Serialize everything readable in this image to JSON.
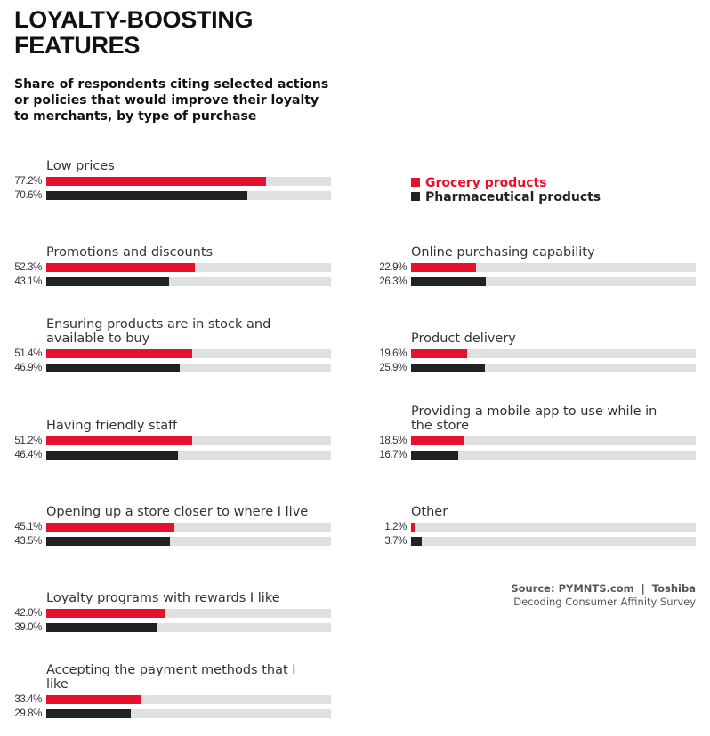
{
  "chart_data": {
    "type": "bar",
    "title": "LOYALTY-BOOSTING FEATURES",
    "subtitle": "Share of respondents citing selected actions or policies that would improve their loyalty to merchants, by type of purchase",
    "categories": [
      "Low prices",
      "Promotions and discounts",
      "Ensuring products are in stock and available to buy",
      "Having friendly staff",
      "Opening up a store closer to where I live",
      "Loyalty programs with rewards I like",
      "Accepting the payment methods that I like",
      "Online purchasing capability",
      "Product delivery",
      "Providing a mobile app to use while in the store",
      "Other"
    ],
    "series": [
      {
        "name": "Grocery products",
        "color": "#e8112d",
        "values": [
          77.2,
          52.3,
          51.4,
          51.2,
          45.1,
          42.0,
          33.4,
          22.9,
          19.6,
          18.5,
          1.2
        ],
        "value_labels": [
          "77.2%",
          "52.3%",
          "51.4%",
          "51.2%",
          "45.1%",
          "42.0%",
          "33.4%",
          "22.9%",
          "19.6%",
          "18.5%",
          "1.2%"
        ]
      },
      {
        "name": "Pharmaceutical products",
        "color": "#222222",
        "values": [
          70.6,
          43.1,
          46.9,
          46.4,
          43.5,
          39.0,
          29.8,
          26.3,
          25.9,
          16.7,
          3.7
        ],
        "value_labels": [
          "70.6%",
          "43.1%",
          "46.9%",
          "46.4%",
          "43.5%",
          "39.0%",
          "29.8%",
          "26.3%",
          "25.9%",
          "16.7%",
          "3.7%"
        ]
      }
    ],
    "xlim": [
      0,
      100
    ],
    "source": "Source: PYMNTS.com  |  Toshiba",
    "source_note": "Decoding Consumer Affinity Survey"
  }
}
